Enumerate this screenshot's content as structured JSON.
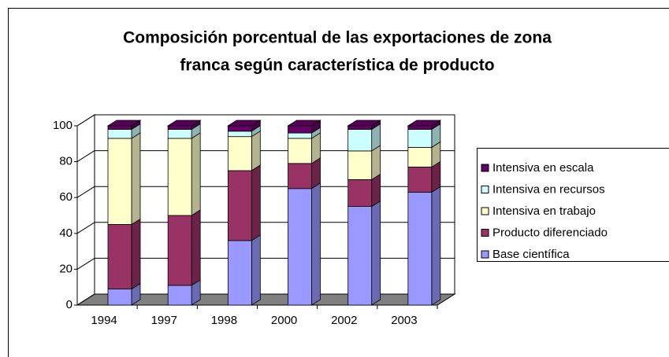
{
  "chart_data": {
    "type": "bar3d_stacked",
    "title": [
      "Composición porcentual de las exportaciones de zona",
      "franca según característica de producto"
    ],
    "categories": [
      "1994",
      "1997",
      "1998",
      "2000",
      "2002",
      "2003"
    ],
    "series": [
      {
        "name": "Base científica",
        "color": "#9999ff",
        "values": [
          9,
          11,
          36,
          65,
          55,
          63
        ]
      },
      {
        "name": "Producto diferenciado",
        "color": "#993366",
        "values": [
          36,
          39,
          39,
          14,
          15,
          14
        ]
      },
      {
        "name": "Intensiva en trabajo",
        "color": "#ffffcc",
        "values": [
          48,
          43,
          19,
          14,
          16,
          11
        ]
      },
      {
        "name": "Intensiva en recursos",
        "color": "#ccffff",
        "values": [
          5,
          5,
          3,
          3,
          12,
          10
        ]
      },
      {
        "name": "Intensiva en escala",
        "color": "#660066",
        "values": [
          2,
          2,
          3,
          4,
          2,
          2
        ]
      }
    ],
    "ylim": [
      0,
      100
    ],
    "yticks": [
      0,
      20,
      40,
      60,
      80,
      100
    ],
    "grid": true,
    "legend": "right"
  }
}
